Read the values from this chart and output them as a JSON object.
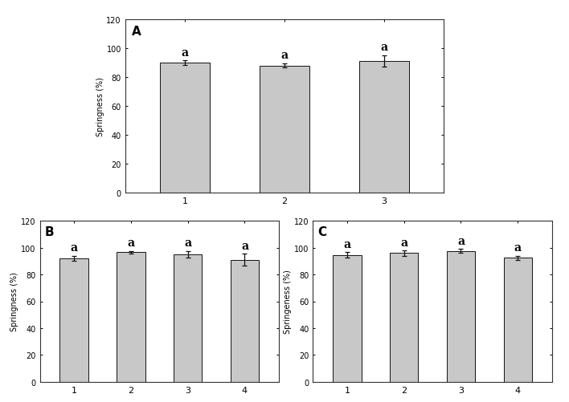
{
  "panel_A": {
    "values": [
      90,
      88,
      91
    ],
    "errors": [
      1.5,
      1.5,
      4.0
    ],
    "labels": [
      "1",
      "2",
      "3"
    ],
    "letters": [
      "a",
      "a",
      "a"
    ],
    "ylabel": "Springness (%)",
    "ylim": [
      0,
      120
    ],
    "yticks": [
      0,
      20,
      40,
      60,
      80,
      100,
      120
    ],
    "panel_label": "A"
  },
  "panel_B": {
    "values": [
      92,
      96.5,
      95,
      91
    ],
    "errors": [
      2.0,
      1.0,
      2.5,
      4.5
    ],
    "labels": [
      "1",
      "2",
      "3",
      "4"
    ],
    "letters": [
      "a",
      "a",
      "a",
      "a"
    ],
    "ylabel": "Springness (%)",
    "ylim": [
      0,
      120
    ],
    "yticks": [
      0,
      20,
      40,
      60,
      80,
      100,
      120
    ],
    "panel_label": "B"
  },
  "panel_C": {
    "values": [
      94.5,
      96,
      97.5,
      92.5
    ],
    "errors": [
      2.0,
      2.0,
      1.5,
      1.5
    ],
    "labels": [
      "1",
      "2",
      "3",
      "4"
    ],
    "letters": [
      "a",
      "a",
      "a",
      "a"
    ],
    "ylabel": "Springeness (%)",
    "ylim": [
      0,
      120
    ],
    "yticks": [
      0,
      20,
      40,
      60,
      80,
      100,
      120
    ],
    "panel_label": "C"
  },
  "bar_color": "#C8C8C8",
  "bar_edgecolor": "#111111",
  "error_color": "#111111",
  "letter_fontsize": 10,
  "panel_label_fontsize": 11,
  "axis_fontsize": 7,
  "ylabel_fontsize": 7,
  "ylabel_color": "#000000",
  "tick_label_color": "#000000"
}
